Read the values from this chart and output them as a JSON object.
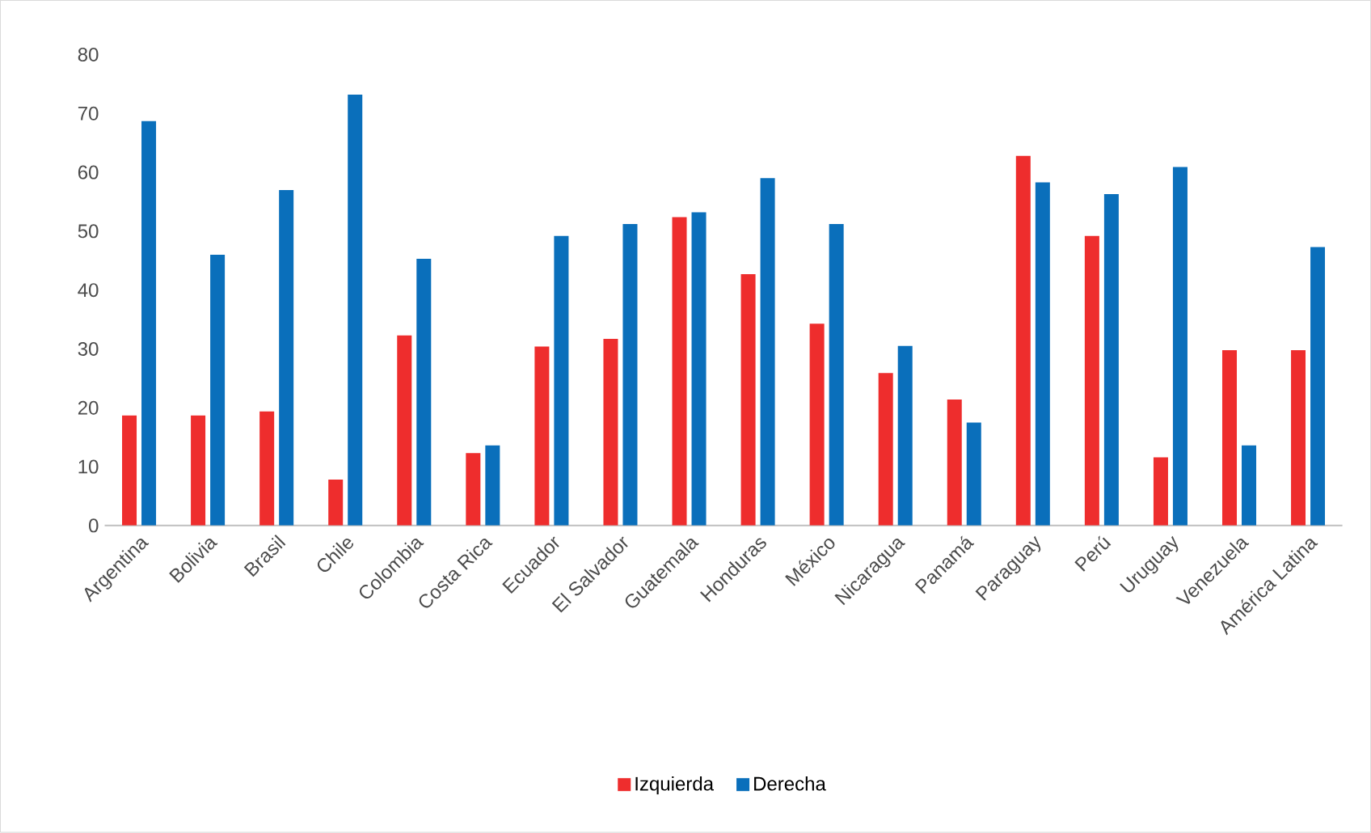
{
  "chart_data": {
    "type": "bar",
    "categories": [
      "Argentina",
      "Bolivia",
      "Brasil",
      "Chile",
      "Colombia",
      "Costa Rica",
      "Ecuador",
      "El Salvador",
      "Guatemala",
      "Honduras",
      "México",
      "Nicaragua",
      "Panamá",
      "Paraguay",
      "Perú",
      "Uruguay",
      "Venezuela",
      "América Latina"
    ],
    "series": [
      {
        "name": "Izquierda",
        "color": "#ee2d2d",
        "values": [
          18.7,
          18.7,
          19.4,
          7.8,
          32.3,
          12.3,
          30.4,
          31.7,
          52.4,
          42.7,
          34.3,
          25.9,
          21.4,
          62.8,
          49.2,
          11.6,
          29.8,
          29.8
        ]
      },
      {
        "name": "Derecha",
        "color": "#0a6fbb",
        "values": [
          68.7,
          46.0,
          57.0,
          73.2,
          45.3,
          13.6,
          49.2,
          51.2,
          53.2,
          59.0,
          51.2,
          30.5,
          17.5,
          58.3,
          56.3,
          60.9,
          13.6,
          47.3
        ]
      }
    ],
    "ylim": [
      0,
      80
    ],
    "yticks": [
      0,
      10,
      20,
      30,
      40,
      50,
      60,
      70,
      80
    ],
    "legend": "bottom"
  }
}
